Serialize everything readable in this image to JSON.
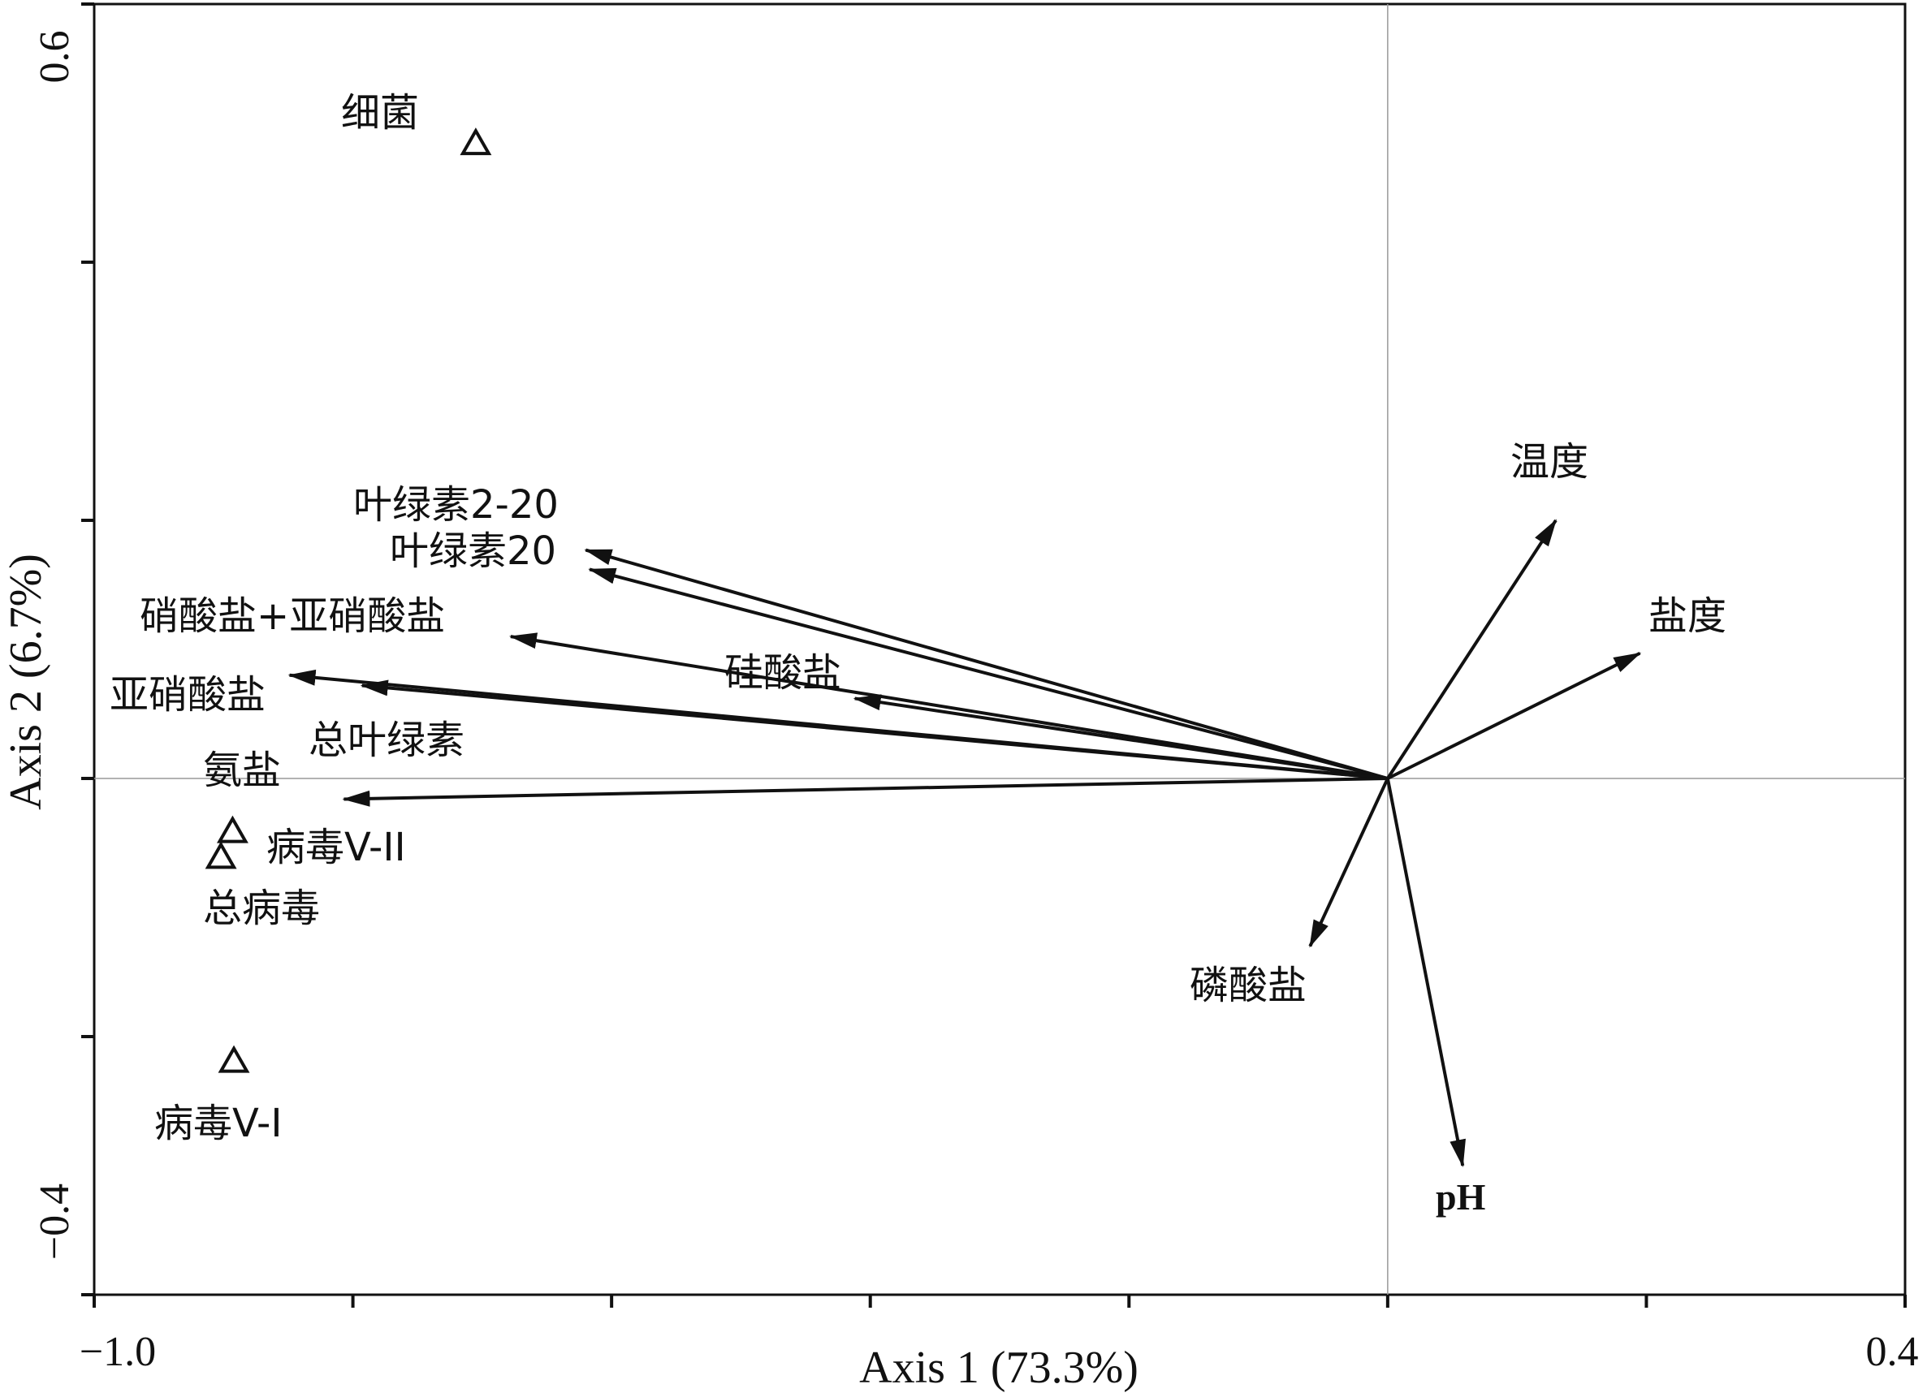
{
  "chart_data": {
    "type": "scatter",
    "title": "",
    "xlabel": "Axis 1 (73.3%)",
    "ylabel": "Axis 2 (6.7%)",
    "xlim": [
      -1.0,
      0.4
    ],
    "ylim": [
      -0.4,
      0.6
    ],
    "x_tick_labels": [
      "−1.0",
      "0.4"
    ],
    "y_tick_labels": [
      "0.6",
      "−0.4"
    ],
    "x_ticks": [
      -1.0,
      -0.8,
      -0.6,
      -0.4,
      -0.2,
      0.0,
      0.2,
      0.4
    ],
    "y_ticks": [
      0.6,
      0.4,
      0.2,
      0.0,
      -0.2,
      -0.4
    ],
    "reference_lines": {
      "x": 0,
      "y": 0
    },
    "colors": {
      "ink": "#111111",
      "reflines": "#999999"
    },
    "species": [
      {
        "name": "细菌",
        "x": -0.705,
        "y": 0.493
      },
      {
        "name": "病毒V-II",
        "x": -0.893,
        "y": -0.04
      },
      {
        "name": "总病毒",
        "x": -0.902,
        "y": -0.06
      },
      {
        "name": "病毒V-I",
        "x": -0.892,
        "y": -0.218
      }
    ],
    "vectors": [
      {
        "name": "叶绿素2-20",
        "x": -0.62,
        "y": 0.177
      },
      {
        "name": "叶绿素20",
        "x": -0.617,
        "y": 0.162
      },
      {
        "name": "硝酸盐+亚硝酸盐",
        "x": -0.678,
        "y": 0.11
      },
      {
        "name": "硅酸盐",
        "x": -0.412,
        "y": 0.062
      },
      {
        "name": "亚硝酸盐",
        "x": -0.849,
        "y": 0.08
      },
      {
        "name": "总叶绿素",
        "x": -0.793,
        "y": 0.072
      },
      {
        "name": "氨盐",
        "x": -0.807,
        "y": -0.016
      },
      {
        "name": "温度",
        "x": 0.13,
        "y": 0.2
      },
      {
        "name": "盐度",
        "x": 0.195,
        "y": 0.097
      },
      {
        "name": "磷酸盐",
        "x": -0.06,
        "y": -0.13
      },
      {
        "name": "pH",
        "x": 0.058,
        "y": -0.3
      }
    ]
  }
}
